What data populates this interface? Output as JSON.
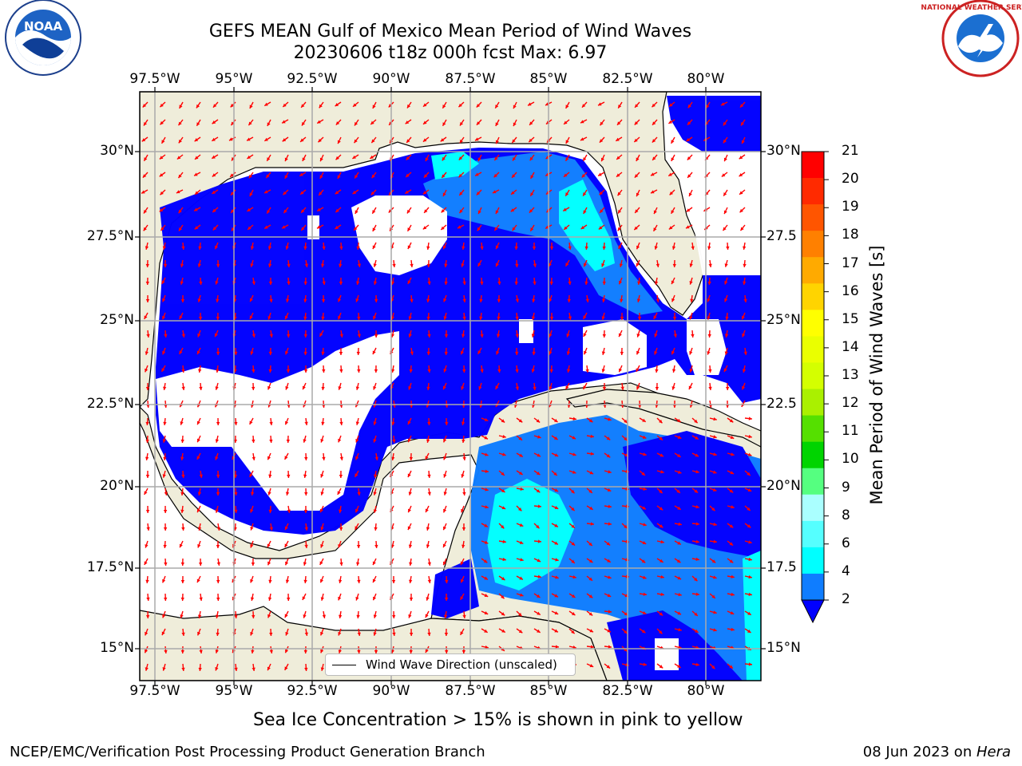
{
  "title": {
    "line1": "GEFS MEAN Gulf of Mexico Mean Period of Wind Waves",
    "line2": "20230606 t18z 000h fcst   Max: 6.97"
  },
  "logos": {
    "left": "noara-logo",
    "right": "nws-logo",
    "right_text": "NATIONAL WEATHER SERVICE"
  },
  "map": {
    "lon_ticks": [
      "97.5°W",
      "95°W",
      "92.5°W",
      "90°W",
      "87.5°W",
      "85°W",
      "82.5°W",
      "80°W"
    ],
    "lat_ticks": [
      "30°N",
      "27.5°N",
      "25°N",
      "22.5°N",
      "20°N",
      "17.5°N",
      "15°N"
    ],
    "right_lat_ticks": [
      "30°N",
      "27.5",
      "25°N",
      "22.5",
      "20°N",
      "17.5",
      "15°N"
    ],
    "land_color": "#efedda",
    "ocean_low_color": "#0000ff",
    "ocean_mid_color": "#0f7dff",
    "ocean_high_color": "#00ffff",
    "arrow_color": "#ff0000"
  },
  "legend": {
    "label": "Wind Wave Direction (unscaled)"
  },
  "colorbar": {
    "label": "Mean Period of Wind Waves [s]",
    "ticks": [
      "21",
      "20",
      "19",
      "18",
      "17",
      "16",
      "15",
      "14",
      "13",
      "12",
      "11",
      "10",
      "9",
      "8",
      "6",
      "4",
      "2"
    ],
    "colors": [
      "#ff0000",
      "#ff2a00",
      "#ff5500",
      "#ff8000",
      "#ffaa00",
      "#ffd400",
      "#ffff00",
      "#eaff00",
      "#d4ff00",
      "#aaf000",
      "#55e000",
      "#00d400",
      "#55ff80",
      "#aaffff",
      "#55ffff",
      "#00ffff",
      "#0f7dff"
    ]
  },
  "note": "Sea Ice Concentration > 15% is shown in pink to yellow",
  "footer": {
    "left": "NCEP/EMC/Verification Post Processing Product Generation Branch",
    "right_prefix": "08 Jun 2023 on ",
    "right_host": "Hera"
  }
}
